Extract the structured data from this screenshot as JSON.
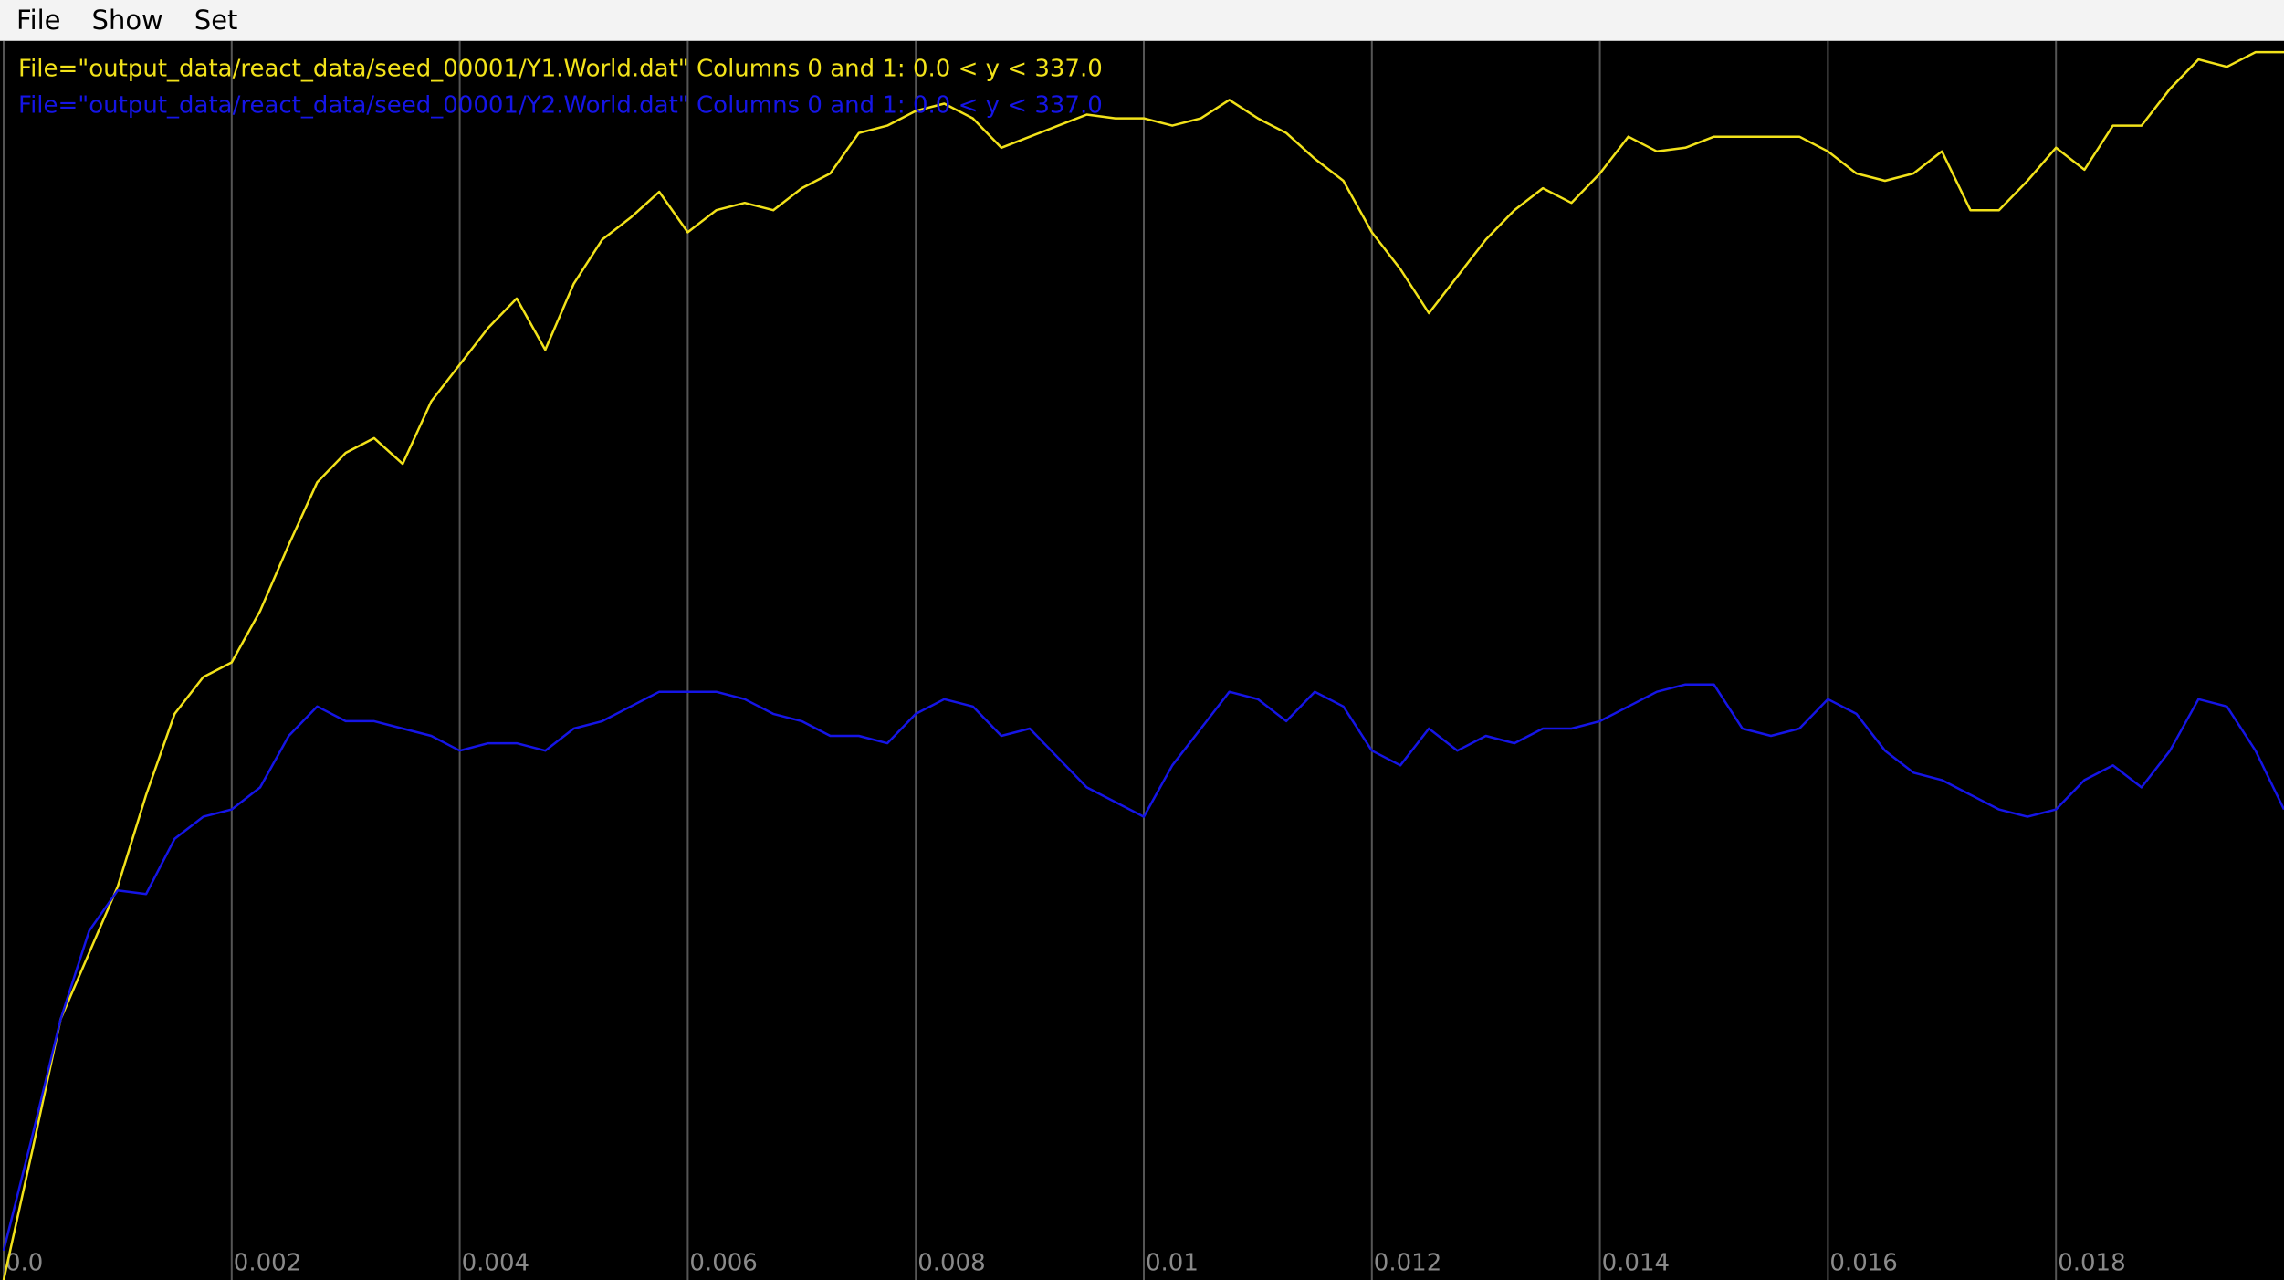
{
  "menu": [
    "File",
    "Show",
    "Set"
  ],
  "chart_data": {
    "type": "line",
    "x": [
      0,
      0.00025,
      0.0005,
      0.00075,
      0.001,
      0.00125,
      0.0015,
      0.00175,
      0.002,
      0.00225,
      0.0025,
      0.00275,
      0.003,
      0.00325,
      0.0035,
      0.00375,
      0.004,
      0.00425,
      0.0045,
      0.00475,
      0.005,
      0.00525,
      0.0055,
      0.00575,
      0.006,
      0.00625,
      0.0065,
      0.00675,
      0.007,
      0.00725,
      0.0075,
      0.00775,
      0.008,
      0.00825,
      0.0085,
      0.00875,
      0.009,
      0.00925,
      0.0095,
      0.00975,
      0.01,
      0.01025,
      0.0105,
      0.01075,
      0.011,
      0.01125,
      0.0115,
      0.01175,
      0.012,
      0.01225,
      0.0125,
      0.01275,
      0.013,
      0.01325,
      0.0135,
      0.01375,
      0.014,
      0.01425,
      0.0145,
      0.01475,
      0.015,
      0.01525,
      0.0155,
      0.01575,
      0.016,
      0.01625,
      0.0165,
      0.01675,
      0.017,
      0.01725,
      0.0175,
      0.01775,
      0.018,
      0.01825,
      0.0185,
      0.01875,
      0.019,
      0.01925,
      0.0195,
      0.01975,
      0.02
    ],
    "series": [
      {
        "name": "File=\"output_data/react_data/seed_00001/Y1.World.dat\" Columns 0 and 1: 0.0 < y < 337.0",
        "color": "#f2e21a",
        "values": [
          0,
          35,
          71,
          89,
          107,
          132,
          154,
          164,
          168,
          182,
          200,
          217,
          225,
          229,
          222,
          239,
          249,
          259,
          267,
          253,
          271,
          283,
          289,
          296,
          285,
          291,
          293,
          291,
          297,
          301,
          312,
          314,
          318,
          320,
          316,
          308,
          311,
          314,
          317,
          316,
          316,
          314,
          316,
          321,
          316,
          312,
          305,
          299,
          285,
          275,
          263,
          273,
          283,
          291,
          297,
          293,
          301,
          311,
          307,
          308,
          311,
          311,
          311,
          311,
          307,
          301,
          299,
          301,
          307,
          291,
          291,
          299,
          308,
          302,
          314,
          314,
          324,
          332,
          330,
          334,
          334
        ]
      },
      {
        "name": "File=\"output_data/react_data/seed_00001/Y2.World.dat\" Columns 0 and 1: 0.0 < y < 337.0",
        "color": "#1515e6",
        "values": [
          8,
          39,
          71,
          95,
          106,
          105,
          120,
          126,
          128,
          134,
          148,
          156,
          152,
          152,
          150,
          148,
          144,
          146,
          146,
          144,
          150,
          152,
          156,
          160,
          160,
          160,
          158,
          154,
          152,
          148,
          148,
          146,
          154,
          158,
          156,
          148,
          150,
          142,
          134,
          130,
          126,
          140,
          150,
          160,
          158,
          152,
          160,
          156,
          144,
          140,
          150,
          144,
          148,
          146,
          150,
          150,
          152,
          156,
          160,
          162,
          162,
          150,
          148,
          150,
          158,
          154,
          144,
          138,
          136,
          132,
          128,
          126,
          128,
          136,
          140,
          134,
          144,
          158,
          156,
          144,
          128
        ]
      }
    ],
    "xlim": [
      0,
      0.02
    ],
    "ylim": [
      0,
      337
    ],
    "xticks": [
      {
        "value": 0,
        "label": "0.0"
      },
      0.002,
      0.004,
      0.006,
      0.008,
      0.01,
      0.012,
      0.014,
      0.016,
      0.018
    ],
    "grid": true
  }
}
